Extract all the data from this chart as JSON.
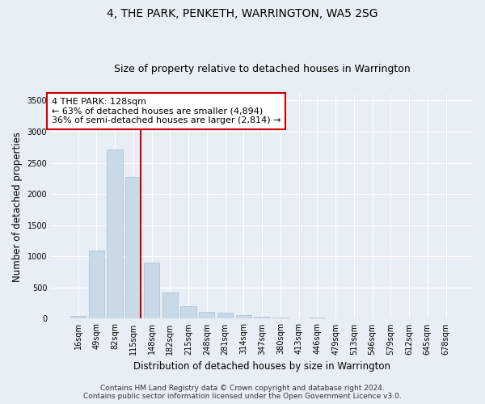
{
  "title": "4, THE PARK, PENKETH, WARRINGTON, WA5 2SG",
  "subtitle": "Size of property relative to detached houses in Warrington",
  "xlabel": "Distribution of detached houses by size in Warrington",
  "ylabel": "Number of detached properties",
  "categories": [
    "16sqm",
    "49sqm",
    "82sqm",
    "115sqm",
    "148sqm",
    "182sqm",
    "215sqm",
    "248sqm",
    "281sqm",
    "314sqm",
    "347sqm",
    "380sqm",
    "413sqm",
    "446sqm",
    "479sqm",
    "513sqm",
    "546sqm",
    "579sqm",
    "612sqm",
    "645sqm",
    "678sqm"
  ],
  "values": [
    50,
    1100,
    2720,
    2270,
    900,
    420,
    200,
    115,
    95,
    55,
    35,
    20,
    10,
    15,
    5,
    3,
    2,
    1,
    1,
    0,
    0
  ],
  "bar_color": "#c9d9e8",
  "bar_edge_color": "#aabcce",
  "vline_color": "#cc0000",
  "annotation_text": "4 THE PARK: 128sqm\n← 63% of detached houses are smaller (4,894)\n36% of semi-detached houses are larger (2,814) →",
  "annotation_box_color": "#ffffff",
  "annotation_box_edge": "#cc0000",
  "ylim": [
    0,
    3600
  ],
  "yticks": [
    0,
    500,
    1000,
    1500,
    2000,
    2500,
    3000,
    3500
  ],
  "footer_line1": "Contains HM Land Registry data © Crown copyright and database right 2024.",
  "footer_line2": "Contains public sector information licensed under the Open Government Licence v3.0.",
  "bg_color": "#e8eef5",
  "plot_bg_color": "#e8eef5",
  "grid_color": "#ffffff",
  "title_fontsize": 10,
  "subtitle_fontsize": 9,
  "axis_label_fontsize": 8.5,
  "tick_fontsize": 7,
  "annotation_fontsize": 8,
  "footer_fontsize": 6.5
}
